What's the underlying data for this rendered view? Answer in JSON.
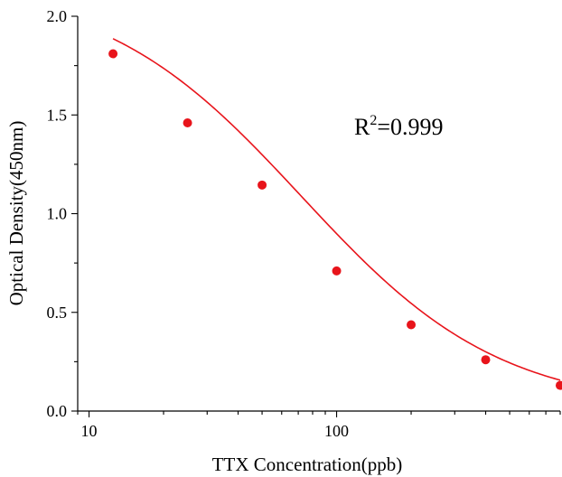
{
  "chart_data": {
    "type": "scatter",
    "title": "",
    "xlabel": "TTX Concentration(ppb)",
    "ylabel": "Optical Density(450nm)",
    "xscale": "log",
    "xlim": [
      9,
      800
    ],
    "ylim": [
      0.0,
      2.0
    ],
    "x_major_ticks": [
      10,
      100
    ],
    "x_tick_labels": [
      "10",
      "100"
    ],
    "y_ticks": [
      0.0,
      0.5,
      1.0,
      1.5,
      2.0
    ],
    "y_tick_labels": [
      "0.0",
      "0.5",
      "1.0",
      "1.5",
      "2.0"
    ],
    "grid": false,
    "point_color": "#e8141b",
    "curve_color": "#e8141b",
    "series": [
      {
        "x": [
          12.5,
          25,
          50,
          100,
          200,
          400,
          800
        ],
        "y": [
          1.81,
          1.46,
          1.145,
          0.71,
          0.437,
          0.26,
          0.13
        ]
      }
    ],
    "fit_curve": {
      "model": "4PL",
      "top": 2.17,
      "bottom": 0.007,
      "ec50": 72,
      "hill": 1.08
    },
    "annotations": [
      {
        "base": "R",
        "sup": "2",
        "rest": "=0.999"
      }
    ]
  }
}
